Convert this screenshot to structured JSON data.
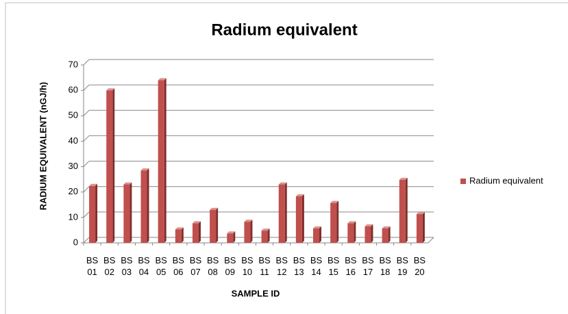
{
  "chart_data": {
    "type": "bar",
    "title": "Radium equivalent",
    "x_label": "SAMPLE ID",
    "y_label": "RADIUM EQUIVALENT (nGJ/h)",
    "categories": [
      "BS 01",
      "BS 02",
      "BS 03",
      "BS 04",
      "BS 05",
      "BS 06",
      "BS 07",
      "BS 08",
      "BS 09",
      "BS 10",
      "BS 11",
      "BS 12",
      "BS 13",
      "BS 14",
      "BS 15",
      "BS 16",
      "BS 17",
      "BS 18",
      "BS 19",
      "BS 20"
    ],
    "series": [
      {
        "name": "Radium equivalent",
        "color": "#c0504d",
        "values": [
          22.4,
          60,
          23,
          28.5,
          64,
          5.3,
          7.7,
          13,
          3.7,
          8.3,
          4.8,
          23,
          18.3,
          5.7,
          15.7,
          7.7,
          6.5,
          5.7,
          24.8,
          11.3
        ]
      }
    ],
    "ylim": [
      0,
      70
    ],
    "yticks": [
      0,
      10,
      20,
      30,
      40,
      50,
      60,
      70
    ],
    "grid": true,
    "legend": "right"
  }
}
